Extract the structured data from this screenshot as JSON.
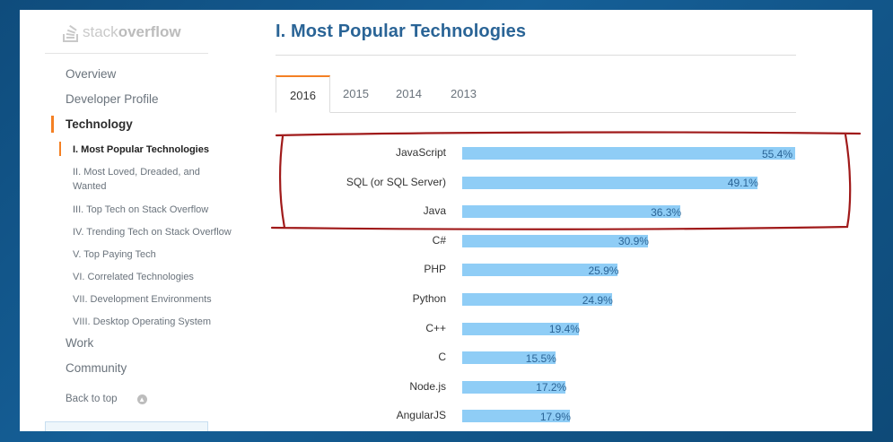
{
  "sidebar": {
    "logo_light": "stack",
    "logo_bold": "overflow",
    "items": [
      {
        "label": "Overview"
      },
      {
        "label": "Developer Profile"
      },
      {
        "label": "Technology"
      }
    ],
    "sub_items": [
      {
        "label": "I. Most Popular Technologies"
      },
      {
        "label": "II. Most Loved, Dreaded, and Wanted"
      },
      {
        "label": "III. Top Tech on Stack Overflow"
      },
      {
        "label": "IV. Trending Tech on Stack Overflow"
      },
      {
        "label": "V. Top Paying Tech"
      },
      {
        "label": "VI. Correlated Technologies"
      },
      {
        "label": "VII. Development Environments"
      },
      {
        "label": "VIII. Desktop Operating System"
      }
    ],
    "bottom_items": [
      {
        "label": "Work"
      },
      {
        "label": "Community"
      }
    ],
    "back_to_top": "Back to top"
  },
  "main": {
    "title": "I. Most Popular Technologies",
    "tabs": [
      {
        "label": "2016"
      },
      {
        "label": "2015"
      },
      {
        "label": "2014"
      },
      {
        "label": "2013"
      }
    ],
    "active_tab": "2016"
  },
  "colors": {
    "bar": "#8fcdf6",
    "accent": "#f48024",
    "title": "#2a6496",
    "annotation": "#a01a1a"
  },
  "chart_data": {
    "type": "bar",
    "orientation": "horizontal",
    "categories": [
      "JavaScript",
      "SQL (or SQL Server)",
      "Java",
      "C#",
      "PHP",
      "Python",
      "C++",
      "C",
      "Node.js",
      "AngularJS"
    ],
    "values": [
      55.4,
      49.1,
      36.3,
      30.9,
      25.9,
      24.9,
      19.4,
      15.5,
      17.2,
      17.9
    ],
    "value_labels": [
      "55.4%",
      "49.1%",
      "36.3%",
      "30.9%",
      "25.9%",
      "24.9%",
      "19.4%",
      "15.5%",
      "17.2%",
      "17.9%"
    ],
    "title": "",
    "xlabel": "",
    "ylabel": "",
    "xlim": [
      0,
      55.4
    ],
    "grid": false
  }
}
